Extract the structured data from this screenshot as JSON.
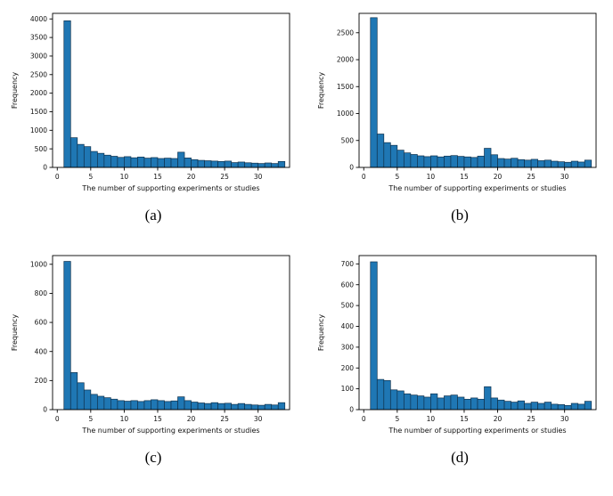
{
  "page": {
    "background": "#ffffff"
  },
  "chart_data": [
    {
      "id": "a",
      "type": "bar",
      "caption": "(a)",
      "title": "",
      "xlabel": "The number of supporting experiments or studies",
      "ylabel": "Frequency",
      "bar_color": "#1f77b4",
      "bar_edge": "#10324e",
      "bin_start": 1,
      "bin_width": 1,
      "xlim": [
        -0.7,
        34.7
      ],
      "ylim": [
        0,
        4150
      ],
      "xticks": [
        0,
        5,
        10,
        15,
        20,
        25,
        30
      ],
      "yticks": [
        0,
        500,
        1000,
        1500,
        2000,
        2500,
        3000,
        3500,
        4000
      ],
      "values": [
        3950,
        800,
        620,
        560,
        430,
        380,
        330,
        300,
        270,
        290,
        260,
        280,
        250,
        265,
        240,
        250,
        240,
        410,
        255,
        210,
        190,
        180,
        170,
        160,
        170,
        130,
        145,
        125,
        115,
        105,
        120,
        105,
        160
      ]
    },
    {
      "id": "b",
      "type": "bar",
      "caption": "(b)",
      "title": "",
      "xlabel": "The number of supporting experiments or studies",
      "ylabel": "Frequency",
      "bar_color": "#1f77b4",
      "bar_edge": "#10324e",
      "bin_start": 1,
      "bin_width": 1,
      "xlim": [
        -0.7,
        34.7
      ],
      "ylim": [
        0,
        2860
      ],
      "xticks": [
        0,
        5,
        10,
        15,
        20,
        25,
        30
      ],
      "yticks": [
        0,
        500,
        1000,
        1500,
        2000,
        2500
      ],
      "values": [
        2780,
        620,
        460,
        410,
        320,
        270,
        240,
        215,
        200,
        215,
        195,
        210,
        220,
        205,
        195,
        185,
        210,
        355,
        235,
        165,
        155,
        170,
        145,
        135,
        150,
        125,
        135,
        115,
        105,
        95,
        115,
        100,
        135
      ]
    },
    {
      "id": "c",
      "type": "bar",
      "caption": "(c)",
      "title": "",
      "xlabel": "The number of supporting experiments or studies",
      "ylabel": "Frequency",
      "bar_color": "#1f77b4",
      "bar_edge": "#10324e",
      "bin_start": 1,
      "bin_width": 1,
      "xlim": [
        -0.7,
        34.7
      ],
      "ylim": [
        0,
        1060
      ],
      "xticks": [
        0,
        5,
        10,
        15,
        20,
        25,
        30
      ],
      "yticks": [
        0,
        200,
        400,
        600,
        800,
        1000
      ],
      "values": [
        1020,
        255,
        185,
        135,
        105,
        92,
        82,
        72,
        62,
        58,
        62,
        56,
        62,
        68,
        62,
        56,
        60,
        88,
        62,
        52,
        46,
        42,
        48,
        42,
        44,
        36,
        42,
        36,
        32,
        30,
        36,
        32,
        48
      ]
    },
    {
      "id": "d",
      "type": "bar",
      "caption": "(d)",
      "title": "",
      "xlabel": "The number of supporting experiments or studies",
      "ylabel": "Frequency",
      "bar_color": "#1f77b4",
      "bar_edge": "#10324e",
      "bin_start": 1,
      "bin_width": 1,
      "xlim": [
        -0.7,
        34.7
      ],
      "ylim": [
        0,
        740
      ],
      "xticks": [
        0,
        5,
        10,
        15,
        20,
        25,
        30
      ],
      "yticks": [
        0,
        100,
        200,
        300,
        400,
        500,
        600,
        700
      ],
      "values": [
        710,
        145,
        140,
        95,
        90,
        76,
        70,
        66,
        60,
        76,
        56,
        66,
        70,
        60,
        50,
        56,
        50,
        110,
        56,
        46,
        40,
        36,
        42,
        30,
        36,
        30,
        36,
        26,
        24,
        20,
        30,
        26,
        40
      ]
    }
  ]
}
